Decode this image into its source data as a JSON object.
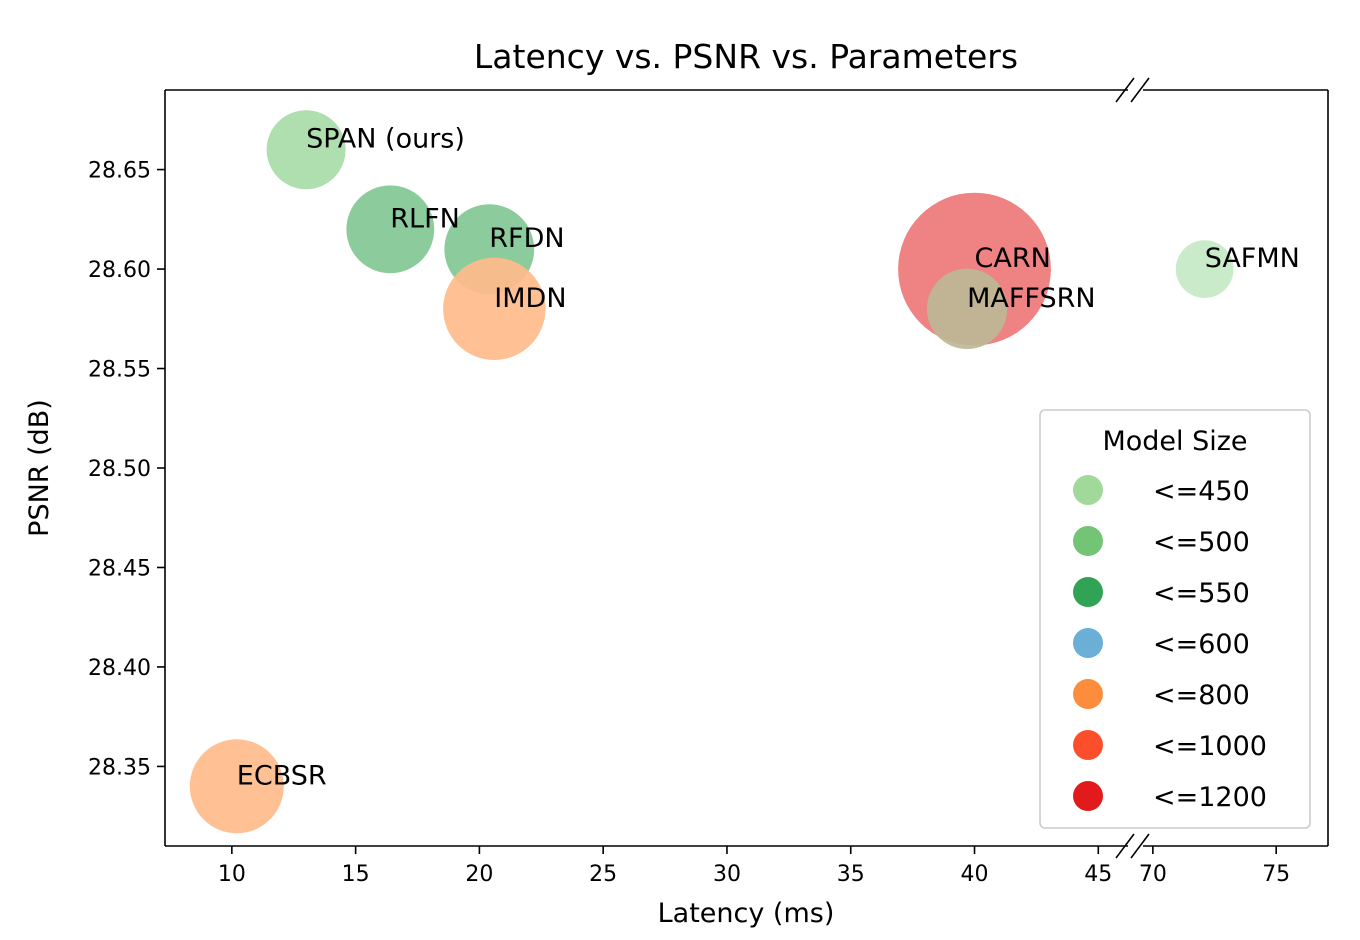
{
  "chart_data": {
    "type": "scatter",
    "title": "Latency vs. PSNR vs. Parameters",
    "xlabel": "Latency (ms)",
    "ylabel": "PSNR (dB)",
    "x_segments": [
      {
        "range": [
          7.3,
          46.2
        ],
        "ticks": [
          10,
          15,
          20,
          25,
          30,
          35,
          40,
          45
        ]
      },
      {
        "range": [
          69.6,
          77.1
        ],
        "ticks": [
          70,
          75
        ]
      }
    ],
    "ylim": [
      28.31,
      28.69
    ],
    "yticks": [
      "28.35",
      "28.40",
      "28.45",
      "28.50",
      "28.55",
      "28.60",
      "28.65"
    ],
    "points": [
      {
        "name": "SPAN (ours)",
        "x": 13.0,
        "y": 28.66,
        "params": 426,
        "color": "#a8dba8"
      },
      {
        "name": "RLFN",
        "x": 16.4,
        "y": 28.62,
        "params": 527,
        "color": "#82c794"
      },
      {
        "name": "RFDN",
        "x": 20.4,
        "y": 28.61,
        "params": 550,
        "color": "#82c794"
      },
      {
        "name": "IMDN",
        "x": 20.6,
        "y": 28.58,
        "params": 715,
        "color": "#ffbb8a"
      },
      {
        "name": "ECBSR",
        "x": 10.2,
        "y": 28.34,
        "params": 603,
        "color": "#ffbb8a"
      },
      {
        "name": "CARN",
        "x": 40.0,
        "y": 28.6,
        "params": 1592,
        "color": "#ee7777"
      },
      {
        "name": "SAFMN",
        "x": 72.1,
        "y": 28.6,
        "params": 228,
        "color": "#c6e9c6"
      },
      {
        "name": "MAFFSRN",
        "x": 39.7,
        "y": 28.58,
        "params": 441,
        "color": "#bcb896"
      }
    ],
    "legend": {
      "title": "Model Size",
      "position": "lower right",
      "entries": [
        {
          "label": "<=450",
          "color": "#a1d99b"
        },
        {
          "label": "<=500",
          "color": "#74c476"
        },
        {
          "label": "<=550",
          "color": "#31a354"
        },
        {
          "label": "<=600",
          "color": "#6baed6"
        },
        {
          "label": "<=800",
          "color": "#fd8d3c"
        },
        {
          "label": "<=1000",
          "color": "#fc4e2a"
        },
        {
          "label": "<=1200",
          "color": "#e31a1c"
        }
      ]
    }
  }
}
